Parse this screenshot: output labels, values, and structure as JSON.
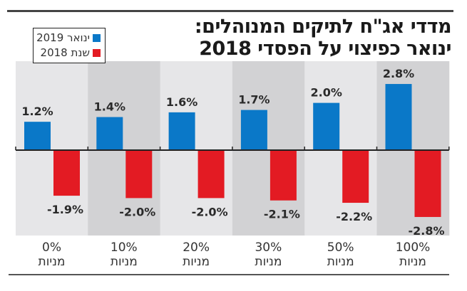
{
  "chart_data": {
    "type": "bar",
    "title_lines": [
      "מדדי אג\"ח לתיקים המנוהלים:",
      "ינואר כפיצוי על הפסדי 2018"
    ],
    "categories": [
      {
        "pct": "0%",
        "word": "מניות"
      },
      {
        "pct": "10%",
        "word": "מניות"
      },
      {
        "pct": "20%",
        "word": "מניות"
      },
      {
        "pct": "30%",
        "word": "מניות"
      },
      {
        "pct": "50%",
        "word": "מניות"
      },
      {
        "pct": "100%",
        "word": "מניות"
      }
    ],
    "series": [
      {
        "name": "ינואר 2019",
        "color": "#0a78c8",
        "values": [
          1.2,
          1.4,
          1.6,
          1.7,
          2.0,
          2.8
        ],
        "labels": [
          "1.2%",
          "1.4%",
          "1.6%",
          "1.7%",
          "2.0%",
          "2.8%"
        ]
      },
      {
        "name": "שנת 2018",
        "color": "#e31b23",
        "values": [
          -1.9,
          -2.0,
          -2.0,
          -2.1,
          -2.2,
          -2.8
        ],
        "labels": [
          "-1.9%",
          "-2.0%",
          "-2.0%",
          "-2.1%",
          "-2.2%",
          "-2.8%"
        ]
      }
    ],
    "xlabel": "",
    "ylabel": "",
    "ylim": [
      -3.5,
      3.6
    ],
    "grid": false,
    "legend_position": "top-left",
    "band_colors": [
      "#e6e6e8",
      "#d2d2d4"
    ]
  }
}
